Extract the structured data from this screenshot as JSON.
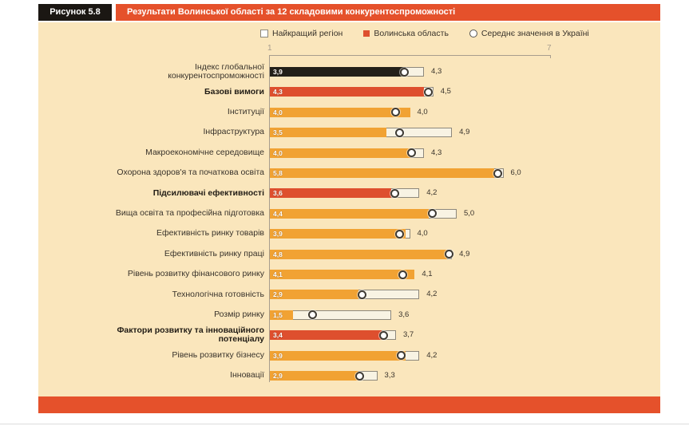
{
  "figure": {
    "tag": "Рисунок 5.8",
    "title": "Результати Волинської області за 12 складовими конкурентоспроможності"
  },
  "legend": [
    {
      "label": "Найкращий регіон",
      "marker": "square-outline",
      "color": "#FFFFFF"
    },
    {
      "label": "Волинська область",
      "marker": "square-fill",
      "color": "#DE4F2E"
    },
    {
      "label": "Середнє значення в Україні",
      "marker": "circle-outline",
      "color": "#FFFFFF"
    }
  ],
  "colors": {
    "accent_red": "#E5512B",
    "black_box": "#1B1713",
    "cream": "#FAE6BC",
    "orange_bar": "#F1A233",
    "red_bar": "#DE4F2E",
    "black_bar": "#232019",
    "track": "#F8F3E3",
    "track_border": "#8D887C",
    "dot_border": "#3F3B33",
    "ink": "#39332B",
    "axis": "#A79D8E"
  },
  "chart_data": {
    "type": "bar",
    "orientation": "horizontal",
    "title": "Результати Волинської області за 12 складовими конкурентоспроможності",
    "xlim": [
      1,
      7
    ],
    "axis": {
      "min_label": "1",
      "max_label": "7"
    },
    "legend_position": "top",
    "series_names": [
      "Найкращий регіон",
      "Волинська область",
      "Середнє значення в Україні (маркер-коло, значення оцінене за позицією)"
    ],
    "rows": [
      {
        "label": "Індекс глобальної конкурентоспроможності",
        "label_lines": [
          "Індекс глобальної",
          "конкурентоспроможності"
        ],
        "volyn": 3.9,
        "volyn_label": "3,9",
        "best": 4.3,
        "best_label": "4,3",
        "avg": 3.88,
        "bar_color": "black",
        "bold": false
      },
      {
        "label": "Базові вимоги",
        "label_lines": [
          "Базові вимоги"
        ],
        "volyn": 4.3,
        "volyn_label": "4,3",
        "best": 4.5,
        "best_label": "4,5",
        "avg": 4.4,
        "bar_color": "red",
        "bold": true
      },
      {
        "label": "Інституції",
        "label_lines": [
          "Інституції"
        ],
        "volyn": 4.0,
        "volyn_label": "4,0",
        "best": 4.0,
        "best_label": "4,0",
        "avg": 3.7,
        "bar_color": "orange",
        "bold": false
      },
      {
        "label": "Інфраструктура",
        "label_lines": [
          "Інфраструктура"
        ],
        "volyn": 3.5,
        "volyn_label": "3,5",
        "best": 4.9,
        "best_label": "4,9",
        "avg": 3.78,
        "bar_color": "orange",
        "bold": false
      },
      {
        "label": "Макроекономічне середовище",
        "label_lines": [
          "Макроекономічне середовище"
        ],
        "volyn": 4.0,
        "volyn_label": "4,0",
        "best": 4.3,
        "best_label": "4,3",
        "avg": 4.03,
        "bar_color": "orange",
        "bold": false
      },
      {
        "label": "Охорона здоров'я та початкова освіта",
        "label_lines": [
          "Охорона здоров'я та початкова освіта"
        ],
        "volyn": 5.8,
        "volyn_label": "5,8",
        "best": 6.0,
        "best_label": "6,0",
        "avg": 5.88,
        "bar_color": "orange",
        "bold": false
      },
      {
        "label": "Підсилювачі ефективності",
        "label_lines": [
          "Підсилювачі ефективності"
        ],
        "volyn": 3.6,
        "volyn_label": "3,6",
        "best": 4.2,
        "best_label": "4,2",
        "avg": 3.68,
        "bar_color": "red",
        "bold": true
      },
      {
        "label": "Вища освіта та професійна підготовка",
        "label_lines": [
          "Вища освіта та професійна підготовка"
        ],
        "volyn": 4.4,
        "volyn_label": "4,4",
        "best": 5.0,
        "best_label": "5,0",
        "avg": 4.48,
        "bar_color": "orange",
        "bold": false
      },
      {
        "label": "Ефективність ринку товарів",
        "label_lines": [
          "Ефективність ринку товарів"
        ],
        "volyn": 3.9,
        "volyn_label": "3,9",
        "best": 4.0,
        "best_label": "4,0",
        "avg": 3.78,
        "bar_color": "orange",
        "bold": false
      },
      {
        "label": "Ефективність ринку праці",
        "label_lines": [
          "Ефективність ринку праці"
        ],
        "volyn": 4.8,
        "volyn_label": "4,8",
        "best": 4.9,
        "best_label": "4,9",
        "avg": 4.84,
        "bar_color": "orange",
        "bold": false
      },
      {
        "label": "Рівень розвитку фінансового ринку",
        "label_lines": [
          "Рівень розвитку фінансового ринку"
        ],
        "volyn": 4.1,
        "volyn_label": "4,1",
        "best": 4.1,
        "best_label": "4,1",
        "avg": 3.84,
        "bar_color": "orange",
        "bold": false
      },
      {
        "label": "Технологічна готовність",
        "label_lines": [
          "Технологічна готовність"
        ],
        "volyn": 2.9,
        "volyn_label": "2,9",
        "best": 4.2,
        "best_label": "4,2",
        "avg": 2.97,
        "bar_color": "orange",
        "bold": false
      },
      {
        "label": "Розмір ринку",
        "label_lines": [
          "Розмір ринку"
        ],
        "volyn": 1.5,
        "volyn_label": "1,5",
        "best": 3.6,
        "best_label": "3,6",
        "avg": 1.92,
        "bar_color": "orange",
        "bold": false
      },
      {
        "label": "Фактори розвитку та інноваційного потенціалу",
        "label_lines": [
          "Фактори розвитку та інноваційного",
          "потенціалу"
        ],
        "volyn": 3.4,
        "volyn_label": "3,4",
        "best": 3.7,
        "best_label": "3,7",
        "avg": 3.44,
        "bar_color": "red",
        "bold": true
      },
      {
        "label": "Рівень розвитку бізнесу",
        "label_lines": [
          "Рівень розвитку бізнесу"
        ],
        "volyn": 3.9,
        "volyn_label": "3,9",
        "best": 4.2,
        "best_label": "4,2",
        "avg": 3.81,
        "bar_color": "orange",
        "bold": false
      },
      {
        "label": "Інновації",
        "label_lines": [
          "Інновації"
        ],
        "volyn": 2.9,
        "volyn_label": "2,9",
        "best": 3.3,
        "best_label": "3,3",
        "avg": 2.92,
        "bar_color": "orange",
        "bold": false
      }
    ]
  }
}
